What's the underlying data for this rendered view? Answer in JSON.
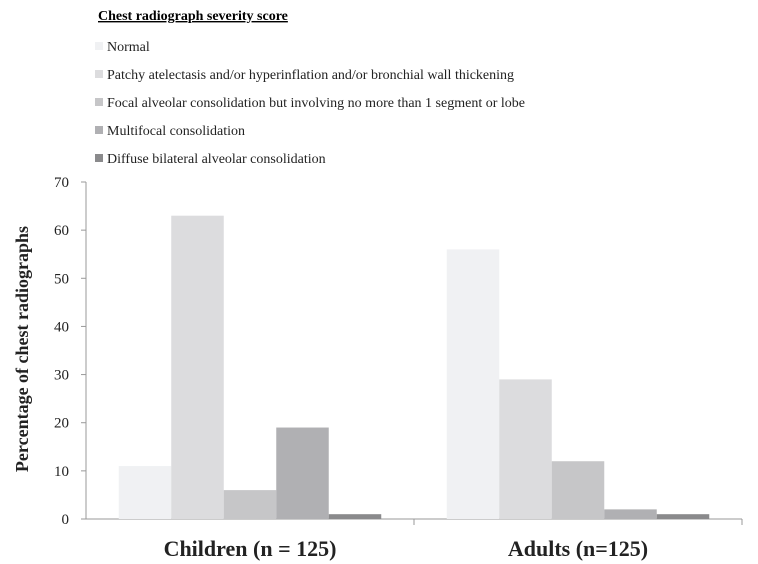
{
  "chart_data": {
    "type": "bar",
    "title": "",
    "legend_title": "Chest radiograph severity score",
    "xlabel": "",
    "ylabel": "Percentage of chest radiographs",
    "ylim": [
      0,
      70
    ],
    "yticks": [
      0,
      10,
      20,
      30,
      40,
      50,
      60,
      70
    ],
    "grid": false,
    "legend_position": "top-left",
    "categories": [
      "Children (n = 125)",
      "Adults (n=125)"
    ],
    "series": [
      {
        "name": "Normal",
        "color": "#f0f1f3",
        "values": [
          11,
          56
        ]
      },
      {
        "name": "Patchy atelectasis and/or hyperinflation and/or bronchial wall thickening",
        "color": "#dcdcde",
        "values": [
          63,
          29
        ]
      },
      {
        "name": "Focal alveolar consolidation but involving no more than 1 segment or lobe",
        "color": "#c6c6c8",
        "values": [
          6,
          12
        ]
      },
      {
        "name": "Multifocal consolidation",
        "color": "#b0b0b3",
        "values": [
          19,
          2
        ]
      },
      {
        "name": "Diffuse bilateral alveolar consolidation",
        "color": "#8a8a8c",
        "values": [
          1,
          1
        ]
      }
    ]
  }
}
